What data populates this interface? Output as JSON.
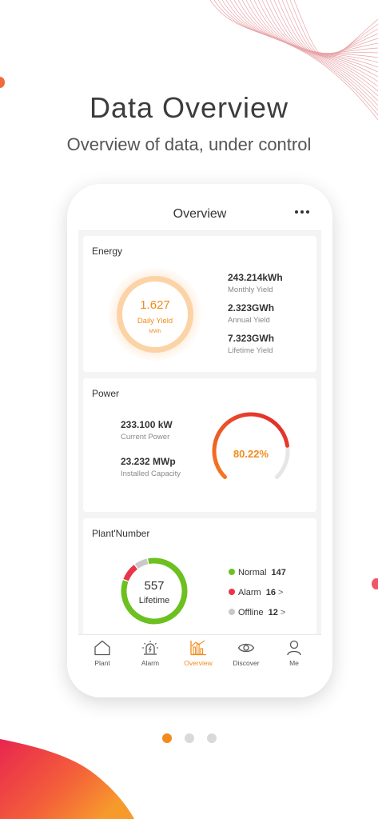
{
  "headline": "Data Overview",
  "subline": "Overview of data, under control",
  "nav": {
    "title": "Overview",
    "more_icon": "more-horizontal-icon"
  },
  "energy": {
    "title": "Energy",
    "gauge": {
      "value": "1.627",
      "label": "Daily Yield",
      "unit": "MWh"
    },
    "stats": [
      {
        "value": "243.214kWh",
        "label": "Monthly Yield"
      },
      {
        "value": "2.323GWh",
        "label": "Annual Yield"
      },
      {
        "value": "7.323GWh",
        "label": "Lifetime Yield"
      }
    ]
  },
  "power": {
    "title": "Power",
    "stats": [
      {
        "value": "233.100 kW",
        "label": "Current Power"
      },
      {
        "value": "23.232 MWp",
        "label": "Installed Capacity"
      }
    ],
    "gauge": {
      "text": "80.22%",
      "fraction": 0.8022
    }
  },
  "plants": {
    "title": "Plant'Number",
    "total": {
      "value": "557",
      "label": "Lifetime"
    },
    "legend": [
      {
        "label": "Normal",
        "count": "147",
        "color": "#6cc01f",
        "chevron": ""
      },
      {
        "label": "Alarm",
        "count": "16",
        "color": "#e8354a",
        "chevron": ">"
      },
      {
        "label": "Offline",
        "count": "12",
        "color": "#c8c8c8",
        "chevron": ">"
      }
    ]
  },
  "tabs": [
    {
      "label": "Plant",
      "icon": "home-icon"
    },
    {
      "label": "Alarm",
      "icon": "alarm-siren-icon"
    },
    {
      "label": "Overview",
      "icon": "bar-chart-icon",
      "active": true
    },
    {
      "label": "Discover",
      "icon": "eye-icon"
    },
    {
      "label": "Me",
      "icon": "person-icon"
    }
  ],
  "pager": {
    "count": 3,
    "active": 0
  },
  "colors": {
    "accent": "#f28b1c",
    "gauge_start": "#f57c1f",
    "gauge_end": "#e0252e",
    "normal": "#6cc01f",
    "alarm": "#e8354a",
    "offline": "#c8c8c8"
  }
}
